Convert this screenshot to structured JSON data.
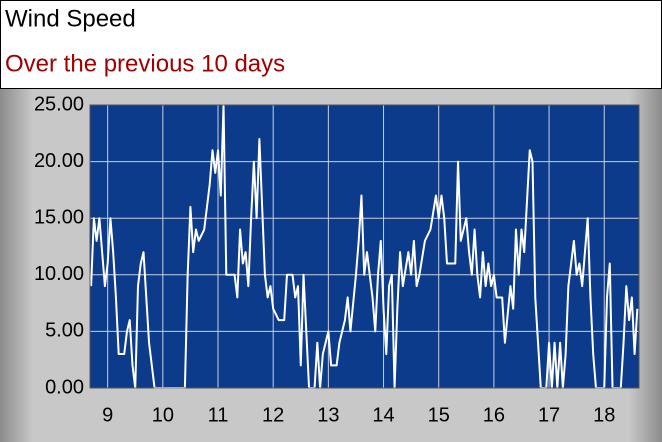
{
  "chart_data": {
    "type": "line",
    "title": "Wind Speed",
    "subtitle": "Over the previous 10 days",
    "color": "#ffffff",
    "background": "#0c3b8c",
    "grid": true,
    "xlim": [
      8.68,
      18.63
    ],
    "ylim": [
      0,
      25
    ],
    "xticks": [
      9,
      10,
      11,
      12,
      13,
      14,
      15,
      16,
      17,
      18
    ],
    "yticks": [
      {
        "value": 0,
        "label": "0.00"
      },
      {
        "value": 5,
        "label": "5.00"
      },
      {
        "value": 10,
        "label": "10.00"
      },
      {
        "value": 15,
        "label": "15.00"
      },
      {
        "value": 20,
        "label": "20.00"
      },
      {
        "value": 25,
        "label": "25.00"
      }
    ],
    "x": [
      8.7,
      8.75,
      8.8,
      8.85,
      8.9,
      8.95,
      9.0,
      9.05,
      9.1,
      9.15,
      9.2,
      9.3,
      9.35,
      9.4,
      9.45,
      9.5,
      9.55,
      9.6,
      9.65,
      9.7,
      9.75,
      9.8,
      9.85,
      10.0,
      10.2,
      10.4,
      10.45,
      10.5,
      10.55,
      10.6,
      10.65,
      10.75,
      10.8,
      10.85,
      10.9,
      10.95,
      11.0,
      11.05,
      11.1,
      11.15,
      11.3,
      11.35,
      11.4,
      11.45,
      11.5,
      11.55,
      11.6,
      11.65,
      11.7,
      11.75,
      11.8,
      11.85,
      11.9,
      11.95,
      12.0,
      12.1,
      12.2,
      12.25,
      12.35,
      12.4,
      12.45,
      12.5,
      12.55,
      12.6,
      12.65,
      12.75,
      12.8,
      12.85,
      12.9,
      12.95,
      13.0,
      13.05,
      13.15,
      13.2,
      13.3,
      13.35,
      13.4,
      13.5,
      13.55,
      13.6,
      13.65,
      13.7,
      13.8,
      13.85,
      13.9,
      13.95,
      14.0,
      14.05,
      14.1,
      14.15,
      14.2,
      14.25,
      14.3,
      14.35,
      14.45,
      14.5,
      14.55,
      14.6,
      14.65,
      14.75,
      14.85,
      14.95,
      15.0,
      15.05,
      15.1,
      15.15,
      15.3,
      15.35,
      15.4,
      15.5,
      15.55,
      15.6,
      15.65,
      15.7,
      15.75,
      15.8,
      15.85,
      15.9,
      15.95,
      16.0,
      16.05,
      16.15,
      16.2,
      16.3,
      16.35,
      16.4,
      16.45,
      16.5,
      16.55,
      16.65,
      16.7,
      16.75,
      16.8,
      16.85,
      16.95,
      17.0,
      17.05,
      17.1,
      17.15,
      17.2,
      17.25,
      17.3,
      17.35,
      17.4,
      17.45,
      17.5,
      17.55,
      17.6,
      17.65,
      17.7,
      17.75,
      17.8,
      17.85,
      18.0,
      18.05,
      18.1,
      18.15,
      18.3,
      18.35,
      18.4,
      18.45,
      18.5,
      18.55,
      18.6
    ],
    "values": [
      9,
      15,
      13,
      15,
      12,
      9,
      11,
      15,
      12,
      8,
      3,
      3,
      5,
      6,
      2,
      0,
      9,
      11,
      12,
      8,
      4,
      2,
      0,
      0,
      0,
      0,
      10,
      16,
      12,
      14,
      13,
      14,
      16,
      18,
      21,
      19,
      21,
      17,
      25,
      10,
      10,
      8,
      14,
      11,
      12,
      9,
      15,
      20,
      15,
      22,
      16,
      10,
      8,
      9,
      7,
      6,
      6,
      10,
      10,
      8,
      9,
      2,
      10,
      5,
      0,
      0,
      4,
      0,
      3,
      4,
      5,
      2,
      2,
      4,
      6,
      8,
      5,
      10,
      13,
      17,
      10,
      12,
      8,
      5,
      10,
      13,
      7,
      3,
      9,
      10,
      0,
      7,
      12,
      9,
      12,
      10,
      13,
      9,
      10,
      13,
      14,
      17,
      15,
      17,
      15,
      11,
      11,
      20,
      13,
      15,
      12,
      10,
      14,
      10,
      8,
      12,
      9,
      11,
      9,
      10,
      8,
      8,
      4,
      9,
      7,
      14,
      10,
      14,
      12,
      21,
      20,
      8,
      4,
      0,
      0,
      4,
      0,
      4,
      0,
      4,
      0,
      3,
      9,
      11,
      13,
      10,
      11,
      9,
      12,
      15,
      8,
      3,
      0,
      0,
      8,
      11,
      0,
      0,
      4,
      9,
      6,
      8,
      3,
      7
    ]
  }
}
